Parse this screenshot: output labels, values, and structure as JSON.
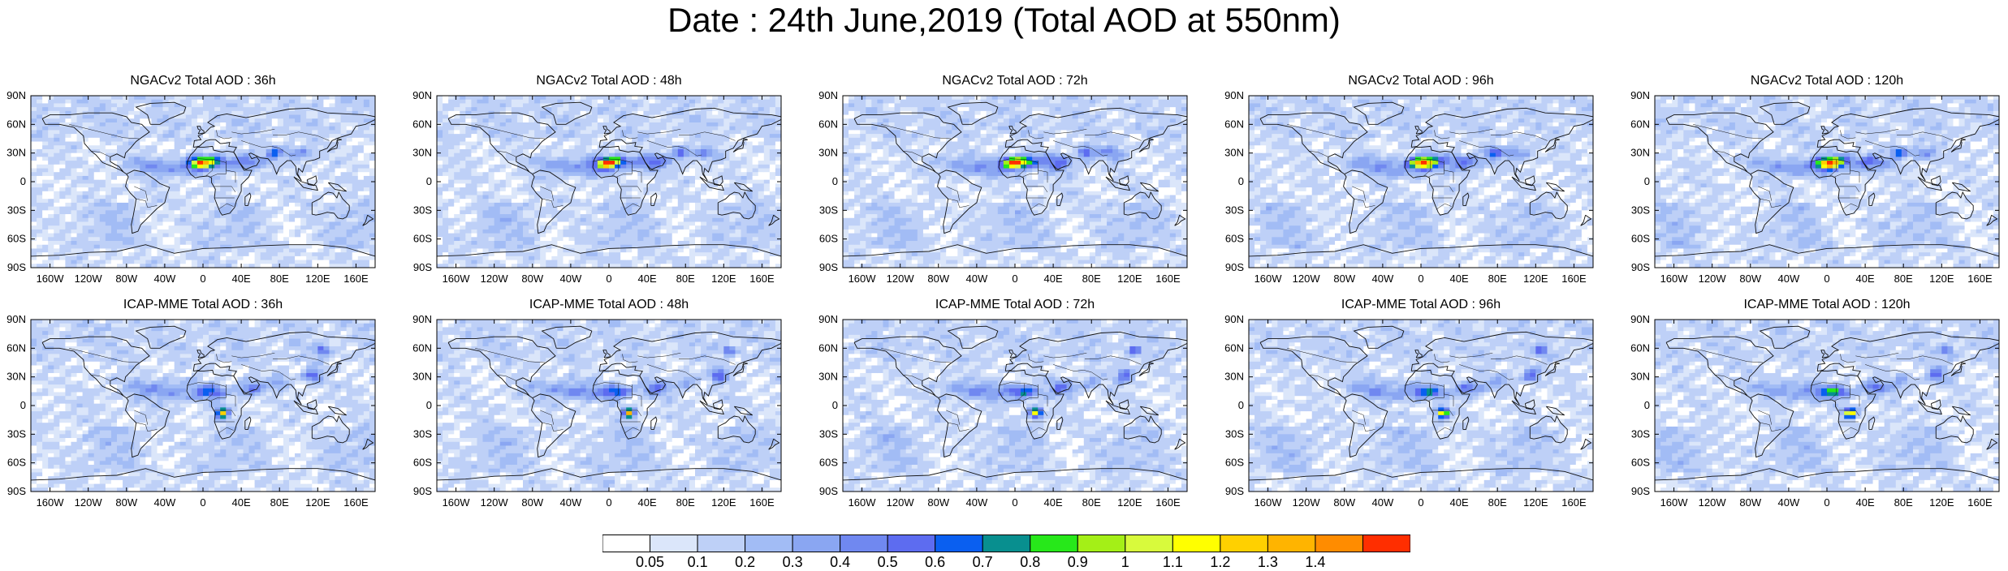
{
  "title": "Date : 24th June,2019 (Total AOD at 550nm)",
  "panels": [
    {
      "title": "NGACv2 Total AOD : 36h"
    },
    {
      "title": "NGACv2 Total AOD : 48h"
    },
    {
      "title": "NGACv2 Total AOD : 72h"
    },
    {
      "title": "NGACv2 Total AOD : 96h"
    },
    {
      "title": "NGACv2 Total AOD : 120h"
    },
    {
      "title": "ICAP-MME Total AOD : 36h"
    },
    {
      "title": "ICAP-MME Total AOD : 48h"
    },
    {
      "title": "ICAP-MME Total AOD : 72h"
    },
    {
      "title": "ICAP-MME Total AOD : 96h"
    },
    {
      "title": "ICAP-MME Total AOD : 120h"
    }
  ],
  "lat_ticks": [
    "90N",
    "60N",
    "30N",
    "0",
    "30S",
    "60S",
    "90S"
  ],
  "lon_ticks": [
    "160W",
    "120W",
    "80W",
    "40W",
    "0",
    "40E",
    "80E",
    "120E",
    "160E"
  ],
  "lon_tick_values": [
    -160,
    -120,
    -80,
    -40,
    0,
    40,
    80,
    120,
    160
  ],
  "lat_tick_values": [
    90,
    60,
    30,
    0,
    -30,
    -60,
    -90
  ],
  "colorbar": {
    "labels": [
      "0.05",
      "0.1",
      "0.2",
      "0.3",
      "0.4",
      "0.5",
      "0.6",
      "0.7",
      "0.8",
      "0.9",
      "1",
      "1.1",
      "1.2",
      "1.3",
      "1.4"
    ],
    "colors": [
      "#ffffff",
      "#dbe6fa",
      "#bed0f7",
      "#a2bcf5",
      "#8aa6f2",
      "#7088f0",
      "#5d6cf0",
      "#0a5ff0",
      "#088f8f",
      "#27e81a",
      "#a4ef17",
      "#d8fa3c",
      "#ffff00",
      "#ffd000",
      "#ffb400",
      "#ff8c00",
      "#ff2e00"
    ]
  }
}
